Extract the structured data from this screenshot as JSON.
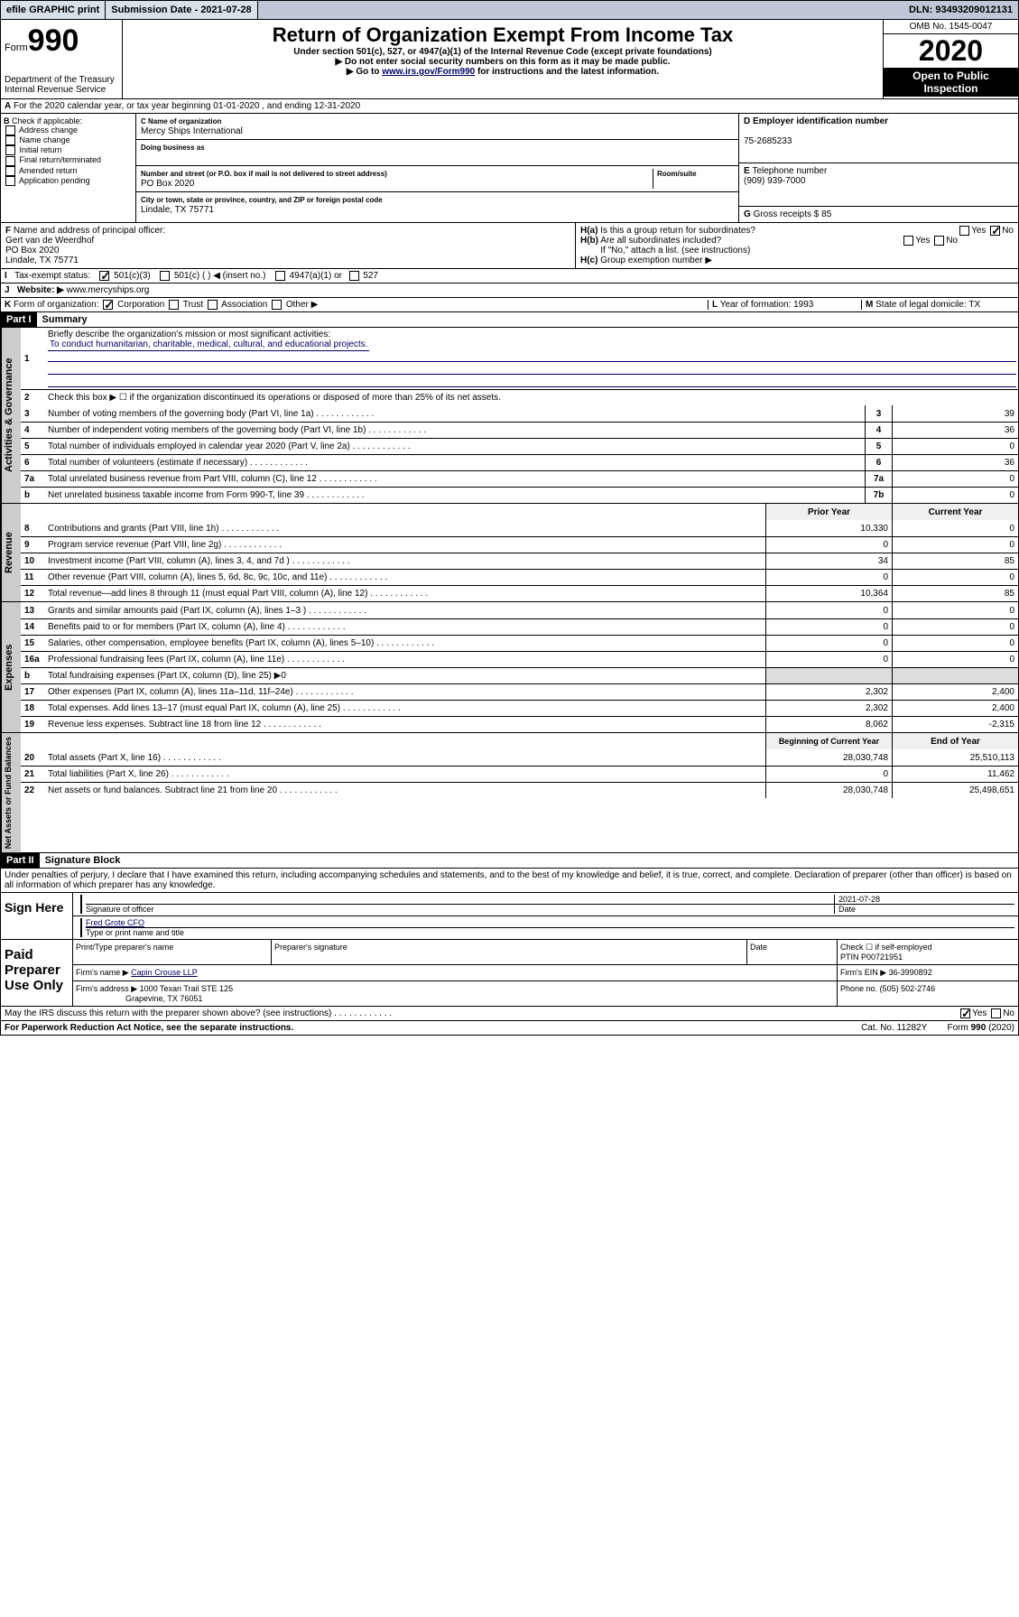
{
  "topbar": {
    "efile": "efile GRAPHIC print",
    "submission": "Submission Date - 2021-07-28",
    "dln": "DLN: 93493209012131"
  },
  "header": {
    "form_word": "Form",
    "form_num": "990",
    "dept": "Department of the Treasury\nInternal Revenue Service",
    "title": "Return of Organization Exempt From Income Tax",
    "sub1": "Under section 501(c), 527, or 4947(a)(1) of the Internal Revenue Code (except private foundations)",
    "sub2": "▶ Do not enter social security numbers on this form as it may be made public.",
    "sub3_pre": "▶ Go to ",
    "sub3_link": "www.irs.gov/Form990",
    "sub3_post": " for instructions and the latest information.",
    "omb": "OMB No. 1545-0047",
    "year": "2020",
    "open": "Open to Public Inspection"
  },
  "A": {
    "text": "For the 2020 calendar year, or tax year beginning 01-01-2020   , and ending 12-31-2020"
  },
  "B": {
    "label": "Check if applicable:",
    "opts": [
      "Address change",
      "Name change",
      "Initial return",
      "Final return/terminated",
      "Amended return",
      "Application pending"
    ]
  },
  "C": {
    "name_lbl": "Name of organization",
    "name": "Mercy Ships International",
    "dba_lbl": "Doing business as",
    "addr_lbl": "Number and street (or P.O. box if mail is not delivered to street address)",
    "room_lbl": "Room/suite",
    "addr": "PO Box 2020",
    "city_lbl": "City or town, state or province, country, and ZIP or foreign postal code",
    "city": "Lindale, TX  75771"
  },
  "D": {
    "lbl": "Employer identification number",
    "val": "75-2685233"
  },
  "E": {
    "lbl": "Telephone number",
    "val": "(909) 939-7000"
  },
  "G": {
    "lbl": "Gross receipts $",
    "val": "85"
  },
  "F": {
    "lbl": "Name and address of principal officer:",
    "name": "Gert van de Weerdhof",
    "addr": "PO Box 2020",
    "city": "Lindale, TX  75771"
  },
  "H": {
    "a": "Is this a group return for subordinates?",
    "b": "Are all subordinates included?",
    "b_note": "If \"No,\" attach a list. (see instructions)",
    "c": "Group exemption number ▶"
  },
  "I": {
    "lbl": "Tax-exempt status:",
    "o1": "501(c)(3)",
    "o2": "501(c) (  ) ◀ (insert no.)",
    "o3": "4947(a)(1) or",
    "o4": "527"
  },
  "J": {
    "lbl": "Website: ▶",
    "val": "www.mercyships.org"
  },
  "K": {
    "lbl": "Form of organization:",
    "o1": "Corporation",
    "o2": "Trust",
    "o3": "Association",
    "o4": "Other ▶"
  },
  "L": {
    "lbl": "Year of formation:",
    "val": "1993"
  },
  "M": {
    "lbl": "State of legal domicile:",
    "val": "TX"
  },
  "part1": {
    "hdr": "Part I",
    "title": "Summary",
    "l1_lbl": "Briefly describe the organization's mission or most significant activities:",
    "l1_val": "To conduct humanitarian, charitable, medical, cultural, and educational projects.",
    "l2": "Check this box ▶ ☐  if the organization discontinued its operations or disposed of more than 25% of its net assets.",
    "lines": [
      {
        "n": "3",
        "t": "Number of voting members of the governing body (Part VI, line 1a)",
        "b": "3",
        "v": "39"
      },
      {
        "n": "4",
        "t": "Number of independent voting members of the governing body (Part VI, line 1b)",
        "b": "4",
        "v": "36"
      },
      {
        "n": "5",
        "t": "Total number of individuals employed in calendar year 2020 (Part V, line 2a)",
        "b": "5",
        "v": "0"
      },
      {
        "n": "6",
        "t": "Total number of volunteers (estimate if necessary)",
        "b": "6",
        "v": "36"
      },
      {
        "n": "7a",
        "t": "Total unrelated business revenue from Part VIII, column (C), line 12",
        "b": "7a",
        "v": "0"
      },
      {
        "n": "b",
        "t": "Net unrelated business taxable income from Form 990-T, line 39",
        "b": "7b",
        "v": "0"
      }
    ],
    "hdr_prior": "Prior Year",
    "hdr_curr": "Current Year",
    "rev": [
      {
        "n": "8",
        "t": "Contributions and grants (Part VIII, line 1h)",
        "p": "10,330",
        "c": "0"
      },
      {
        "n": "9",
        "t": "Program service revenue (Part VIII, line 2g)",
        "p": "0",
        "c": "0"
      },
      {
        "n": "10",
        "t": "Investment income (Part VIII, column (A), lines 3, 4, and 7d )",
        "p": "34",
        "c": "85"
      },
      {
        "n": "11",
        "t": "Other revenue (Part VIII, column (A), lines 5, 6d, 8c, 9c, 10c, and 11e)",
        "p": "0",
        "c": "0"
      },
      {
        "n": "12",
        "t": "Total revenue—add lines 8 through 11 (must equal Part VIII, column (A), line 12)",
        "p": "10,364",
        "c": "85"
      }
    ],
    "exp": [
      {
        "n": "13",
        "t": "Grants and similar amounts paid (Part IX, column (A), lines 1–3 )",
        "p": "0",
        "c": "0"
      },
      {
        "n": "14",
        "t": "Benefits paid to or for members (Part IX, column (A), line 4)",
        "p": "0",
        "c": "0"
      },
      {
        "n": "15",
        "t": "Salaries, other compensation, employee benefits (Part IX, column (A), lines 5–10)",
        "p": "0",
        "c": "0"
      },
      {
        "n": "16a",
        "t": "Professional fundraising fees (Part IX, column (A), line 11e)",
        "p": "0",
        "c": "0"
      },
      {
        "n": "b",
        "t": "Total fundraising expenses (Part IX, column (D), line 25) ▶0",
        "p": "",
        "c": ""
      },
      {
        "n": "17",
        "t": "Other expenses (Part IX, column (A), lines 11a–11d, 11f–24e)",
        "p": "2,302",
        "c": "2,400"
      },
      {
        "n": "18",
        "t": "Total expenses. Add lines 13–17 (must equal Part IX, column (A), line 25)",
        "p": "2,302",
        "c": "2,400"
      },
      {
        "n": "19",
        "t": "Revenue less expenses. Subtract line 18 from line 12",
        "p": "8,062",
        "c": "-2,315"
      }
    ],
    "hdr_beg": "Beginning of Current Year",
    "hdr_end": "End of Year",
    "net": [
      {
        "n": "20",
        "t": "Total assets (Part X, line 16)",
        "p": "28,030,748",
        "c": "25,510,113"
      },
      {
        "n": "21",
        "t": "Total liabilities (Part X, line 26)",
        "p": "0",
        "c": "11,462"
      },
      {
        "n": "22",
        "t": "Net assets or fund balances. Subtract line 21 from line 20",
        "p": "28,030,748",
        "c": "25,498,651"
      }
    ]
  },
  "vtabs": {
    "gov": "Activities & Governance",
    "rev": "Revenue",
    "exp": "Expenses",
    "net": "Net Assets or Fund Balances"
  },
  "part2": {
    "hdr": "Part II",
    "title": "Signature Block",
    "perjury": "Under penalties of perjury, I declare that I have examined this return, including accompanying schedules and statements, and to the best of my knowledge and belief, it is true, correct, and complete. Declaration of preparer (other than officer) is based on all information of which preparer has any knowledge.",
    "sign_here": "Sign Here",
    "sig_officer": "Signature of officer",
    "date": "Date",
    "date_val": "2021-07-28",
    "name_title": "Fred Grote CFO",
    "name_title_lbl": "Type or print name and title",
    "paid": "Paid Preparer Use Only",
    "p_name_lbl": "Print/Type preparer's name",
    "p_sig_lbl": "Preparer's signature",
    "p_date_lbl": "Date",
    "p_check": "Check ☐ if self-employed",
    "ptin_lbl": "PTIN",
    "ptin": "P00721951",
    "firm_name_lbl": "Firm's name    ▶",
    "firm_name": "Capin Crouse LLP",
    "firm_ein_lbl": "Firm's EIN ▶",
    "firm_ein": "36-3990892",
    "firm_addr_lbl": "Firm's address ▶",
    "firm_addr": "1000 Texan Trail STE 125",
    "firm_city": "Grapevine, TX  76051",
    "phone_lbl": "Phone no.",
    "phone": "(505) 502-2746",
    "discuss": "May the IRS discuss this return with the preparer shown above? (see instructions)"
  },
  "footer": {
    "pra": "For Paperwork Reduction Act Notice, see the separate instructions.",
    "cat": "Cat. No. 11282Y",
    "form": "Form 990 (2020)"
  }
}
